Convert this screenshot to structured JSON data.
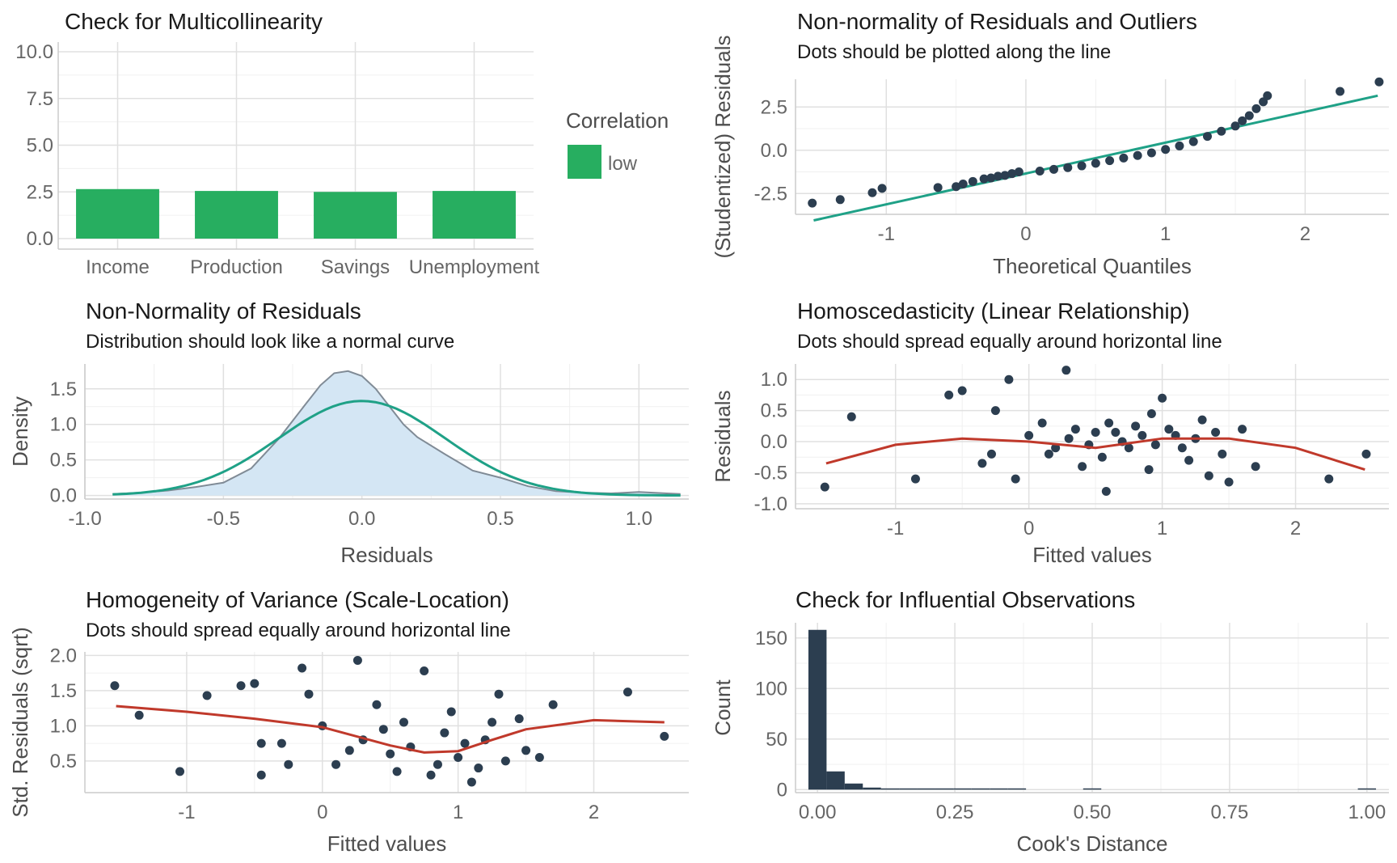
{
  "chart_data": [
    {
      "type": "bar",
      "title": "Check for Multicollinearity",
      "xlabel": "",
      "ylabel": "",
      "categories": [
        "Income",
        "Production",
        "Savings",
        "Unemployment"
      ],
      "values": [
        2.65,
        2.55,
        2.5,
        2.55
      ],
      "ylim": [
        0,
        10
      ],
      "yticks": [
        "0.0",
        "2.5",
        "5.0",
        "7.5",
        "10.0"
      ],
      "legend": {
        "title": "Correlation",
        "entries": [
          "low"
        ],
        "placement": "right"
      },
      "colors": {
        "low": "#27ae60"
      }
    },
    {
      "type": "scatter",
      "title": "Non-normality of Residuals and Outliers",
      "subtitle": "Dots should be plotted along the line",
      "xlabel": "Theoretical Quantiles",
      "ylabel": "(Studentized) Residuals",
      "xlim": [
        -1.65,
        2.6
      ],
      "ylim": [
        -3.7,
        4.1
      ],
      "xticks": [
        "-1",
        "0",
        "1",
        "2"
      ],
      "yticks": [
        "-2.5",
        "0.0",
        "2.5"
      ],
      "reference_line": {
        "x": [
          -1.52,
          2.52
        ],
        "y": [
          -4.05,
          3.15
        ]
      },
      "points": [
        [
          -1.53,
          -3.05
        ],
        [
          -1.33,
          -2.85
        ],
        [
          -1.1,
          -2.45
        ],
        [
          -1.03,
          -2.2
        ],
        [
          -0.63,
          -2.15
        ],
        [
          -0.5,
          -2.1
        ],
        [
          -0.45,
          -1.95
        ],
        [
          -0.38,
          -1.8
        ],
        [
          -0.3,
          -1.65
        ],
        [
          -0.25,
          -1.6
        ],
        [
          -0.2,
          -1.5
        ],
        [
          -0.15,
          -1.45
        ],
        [
          -0.1,
          -1.35
        ],
        [
          -0.05,
          -1.25
        ],
        [
          0.1,
          -1.2
        ],
        [
          0.2,
          -1.1
        ],
        [
          0.3,
          -1.0
        ],
        [
          0.4,
          -0.9
        ],
        [
          0.5,
          -0.75
        ],
        [
          0.6,
          -0.6
        ],
        [
          0.7,
          -0.45
        ],
        [
          0.8,
          -0.3
        ],
        [
          0.9,
          -0.15
        ],
        [
          1.0,
          0.05
        ],
        [
          1.1,
          0.25
        ],
        [
          1.2,
          0.5
        ],
        [
          1.3,
          0.8
        ],
        [
          1.4,
          1.1
        ],
        [
          1.5,
          1.4
        ],
        [
          1.55,
          1.7
        ],
        [
          1.6,
          2.0
        ],
        [
          1.65,
          2.4
        ],
        [
          1.7,
          2.8
        ],
        [
          1.73,
          3.15
        ],
        [
          2.25,
          3.4
        ],
        [
          2.53,
          3.95
        ]
      ],
      "colors": {
        "points": "#2c3e50",
        "line": "#1fa187"
      }
    },
    {
      "type": "area",
      "title": "Non-Normality of Residuals",
      "subtitle": "Distribution should look like a normal curve",
      "xlabel": "Residuals",
      "ylabel": "Density",
      "xlim": [
        -1.0,
        1.18
      ],
      "ylim": [
        -0.05,
        1.85
      ],
      "xticks": [
        "-1.0",
        "-0.5",
        "0.0",
        "0.5",
        "1.0"
      ],
      "yticks": [
        "0.0",
        "0.5",
        "1.0",
        "1.5"
      ],
      "series": [
        {
          "kind": "density",
          "x": [
            -0.9,
            -0.8,
            -0.7,
            -0.6,
            -0.5,
            -0.4,
            -0.3,
            -0.2,
            -0.15,
            -0.1,
            -0.05,
            0.0,
            0.05,
            0.1,
            0.15,
            0.2,
            0.3,
            0.4,
            0.5,
            0.6,
            0.7,
            0.8,
            0.9,
            1.0,
            1.1,
            1.15
          ],
          "y": [
            0.02,
            0.04,
            0.07,
            0.12,
            0.18,
            0.38,
            0.8,
            1.3,
            1.55,
            1.72,
            1.75,
            1.68,
            1.5,
            1.25,
            1.0,
            0.82,
            0.58,
            0.35,
            0.25,
            0.13,
            0.06,
            0.04,
            0.03,
            0.05,
            0.03,
            0.02
          ]
        },
        {
          "kind": "normal",
          "mean": 0.0,
          "sd": 0.3,
          "x": [
            -0.9,
            1.15
          ]
        }
      ],
      "colors": {
        "fill": "#d4e6f4",
        "density_line": "#808b96",
        "normal_line": "#1fa187"
      }
    },
    {
      "type": "scatter",
      "title": "Homoscedasticity (Linear Relationship)",
      "subtitle": "Dots should spread equally around horizontal line",
      "xlabel": "Fitted values",
      "ylabel": "Residuals",
      "xlim": [
        -1.75,
        2.7
      ],
      "ylim": [
        -1.08,
        1.25
      ],
      "xticks": [
        "-1",
        "0",
        "1",
        "2"
      ],
      "yticks": [
        "-1.0",
        "-0.5",
        "0.0",
        "0.5",
        "1.0"
      ],
      "smooth": {
        "x": [
          -1.52,
          -1.0,
          -0.5,
          0.0,
          0.5,
          1.0,
          1.5,
          2.0,
          2.52
        ],
        "y": [
          -0.35,
          -0.05,
          0.05,
          0.0,
          -0.1,
          0.05,
          0.05,
          -0.1,
          -0.45
        ]
      },
      "points": [
        [
          -1.53,
          -0.73
        ],
        [
          -1.33,
          0.4
        ],
        [
          -0.85,
          -0.6
        ],
        [
          -0.6,
          0.75
        ],
        [
          -0.5,
          0.82
        ],
        [
          -0.28,
          -0.2
        ],
        [
          -0.15,
          1.0
        ],
        [
          -0.1,
          -0.6
        ],
        [
          0.1,
          0.3
        ],
        [
          0.2,
          -0.1
        ],
        [
          0.28,
          1.15
        ],
        [
          0.3,
          0.05
        ],
        [
          0.4,
          -0.4
        ],
        [
          0.5,
          0.15
        ],
        [
          0.55,
          -0.25
        ],
        [
          0.6,
          0.3
        ],
        [
          0.7,
          0.0
        ],
        [
          0.8,
          0.25
        ],
        [
          0.9,
          -0.45
        ],
        [
          1.0,
          0.7
        ],
        [
          1.1,
          0.1
        ],
        [
          1.2,
          -0.3
        ],
        [
          1.3,
          0.35
        ],
        [
          1.35,
          -0.55
        ],
        [
          1.5,
          -0.65
        ],
        [
          1.6,
          0.2
        ],
        [
          1.7,
          -0.4
        ],
        [
          2.25,
          -0.6
        ],
        [
          2.53,
          -0.2
        ],
        [
          0.65,
          0.15
        ],
        [
          0.75,
          -0.1
        ],
        [
          0.85,
          0.1
        ],
        [
          0.95,
          -0.05
        ],
        [
          1.05,
          0.2
        ],
        [
          1.15,
          -0.1
        ],
        [
          1.25,
          0.05
        ],
        [
          0.45,
          -0.05
        ],
        [
          0.35,
          0.2
        ],
        [
          0.15,
          -0.2
        ],
        [
          0.0,
          0.1
        ],
        [
          1.4,
          0.15
        ],
        [
          1.45,
          -0.2
        ],
        [
          0.58,
          -0.8
        ],
        [
          0.92,
          0.45
        ],
        [
          -0.35,
          -0.35
        ],
        [
          -0.25,
          0.5
        ]
      ],
      "colors": {
        "points": "#2c3e50",
        "smooth": "#c0392b"
      }
    },
    {
      "type": "scatter",
      "title": "Homogeneity of Variance (Scale-Location)",
      "subtitle": "Dots should spread equally around horizontal line",
      "xlabel": "Fitted values",
      "ylabel": "Std. Residuals (sqrt)",
      "xlim": [
        -1.75,
        2.7
      ],
      "ylim": [
        0.05,
        2.05
      ],
      "xticks": [
        "-1",
        "0",
        "1",
        "2"
      ],
      "yticks": [
        "0.5",
        "1.0",
        "1.5",
        "2.0"
      ],
      "smooth": {
        "x": [
          -1.52,
          -1.0,
          -0.5,
          0.0,
          0.5,
          0.75,
          1.0,
          1.25,
          1.5,
          2.0,
          2.52
        ],
        "y": [
          1.28,
          1.2,
          1.1,
          0.98,
          0.72,
          0.62,
          0.64,
          0.8,
          0.95,
          1.08,
          1.05
        ]
      },
      "points": [
        [
          -1.53,
          1.57
        ],
        [
          -1.35,
          1.15
        ],
        [
          -1.05,
          0.35
        ],
        [
          -0.85,
          1.43
        ],
        [
          -0.6,
          1.57
        ],
        [
          -0.5,
          1.6
        ],
        [
          -0.45,
          0.75
        ],
        [
          -0.45,
          0.3
        ],
        [
          -0.25,
          0.45
        ],
        [
          -0.15,
          1.82
        ],
        [
          -0.1,
          1.45
        ],
        [
          0.0,
          1.0
        ],
        [
          0.1,
          0.45
        ],
        [
          0.26,
          1.93
        ],
        [
          0.3,
          0.8
        ],
        [
          0.4,
          1.3
        ],
        [
          0.5,
          0.6
        ],
        [
          0.6,
          1.05
        ],
        [
          0.75,
          1.78
        ],
        [
          0.8,
          0.3
        ],
        [
          0.9,
          0.9
        ],
        [
          1.0,
          0.55
        ],
        [
          1.1,
          0.2
        ],
        [
          1.2,
          0.8
        ],
        [
          1.3,
          1.45
        ],
        [
          1.35,
          0.5
        ],
        [
          1.45,
          1.1
        ],
        [
          1.6,
          0.55
        ],
        [
          1.7,
          1.3
        ],
        [
          2.25,
          1.48
        ],
        [
          2.52,
          0.85
        ],
        [
          0.65,
          0.7
        ],
        [
          0.85,
          0.45
        ],
        [
          0.95,
          1.2
        ],
        [
          1.05,
          0.75
        ],
        [
          1.15,
          0.4
        ],
        [
          0.45,
          0.95
        ],
        [
          0.55,
          0.35
        ],
        [
          1.25,
          1.05
        ],
        [
          1.5,
          0.65
        ],
        [
          -0.3,
          0.75
        ],
        [
          0.2,
          0.65
        ]
      ],
      "colors": {
        "points": "#2c3e50",
        "smooth": "#c0392b"
      }
    },
    {
      "type": "bar",
      "title": "Check for Influential Observations",
      "xlabel": "Cook's Distance",
      "ylabel": "Count",
      "xlim": [
        -0.04,
        1.04
      ],
      "ylim": [
        -3,
        165
      ],
      "xticks": [
        "0.00",
        "0.25",
        "0.50",
        "0.75",
        "1.00"
      ],
      "yticks": [
        "0",
        "50",
        "100",
        "150"
      ],
      "bin_width": 0.033,
      "bins": [
        0.0,
        0.033,
        0.066,
        0.099,
        0.132,
        0.165,
        0.198,
        0.231,
        0.264,
        0.297,
        0.33,
        0.363,
        0.5,
        1.0
      ],
      "values": [
        158,
        18,
        6,
        2,
        1,
        1,
        1,
        1,
        1,
        1,
        1,
        1,
        1,
        1
      ],
      "colors": {
        "bars": "#2c3e50"
      }
    }
  ]
}
